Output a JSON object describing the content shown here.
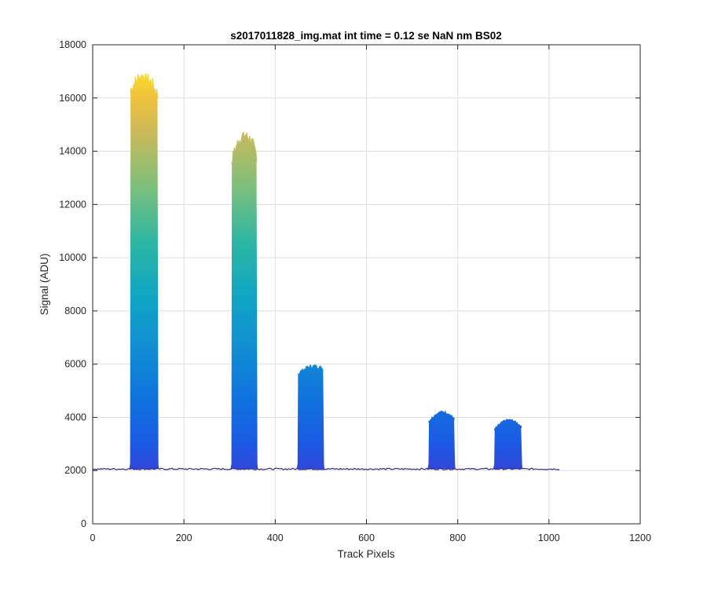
{
  "chart_data": {
    "type": "area",
    "title": "s2017011828_img.mat int time = 0.12 se  NaN nm BS02",
    "xlabel": "Track Pixels",
    "ylabel": "Signal (ADU)",
    "xlim": [
      0,
      1200
    ],
    "ylim": [
      0,
      18000
    ],
    "xticks": [
      0,
      200,
      400,
      600,
      800,
      1000,
      1200
    ],
    "yticks": [
      0,
      2000,
      4000,
      6000,
      8000,
      10000,
      12000,
      14000,
      16000,
      18000
    ],
    "grid": true,
    "colormap": "parula",
    "baseline": 2060,
    "x_extent": [
      0,
      1024
    ],
    "peaks": [
      {
        "x_start": 80,
        "x_end": 145,
        "peak": 16900,
        "edge_left": 16200,
        "edge_right": 16000
      },
      {
        "x_start": 302,
        "x_end": 362,
        "peak": 14700,
        "edge_left": 13500,
        "edge_right": 13700
      },
      {
        "x_start": 447,
        "x_end": 508,
        "peak": 6000,
        "edge_left": 5600,
        "edge_right": 5800
      },
      {
        "x_start": 734,
        "x_end": 795,
        "peak": 4250,
        "edge_left": 3800,
        "edge_right": 3900
      },
      {
        "x_start": 878,
        "x_end": 942,
        "peak": 3950,
        "edge_left": 3500,
        "edge_right": 3600
      }
    ]
  }
}
